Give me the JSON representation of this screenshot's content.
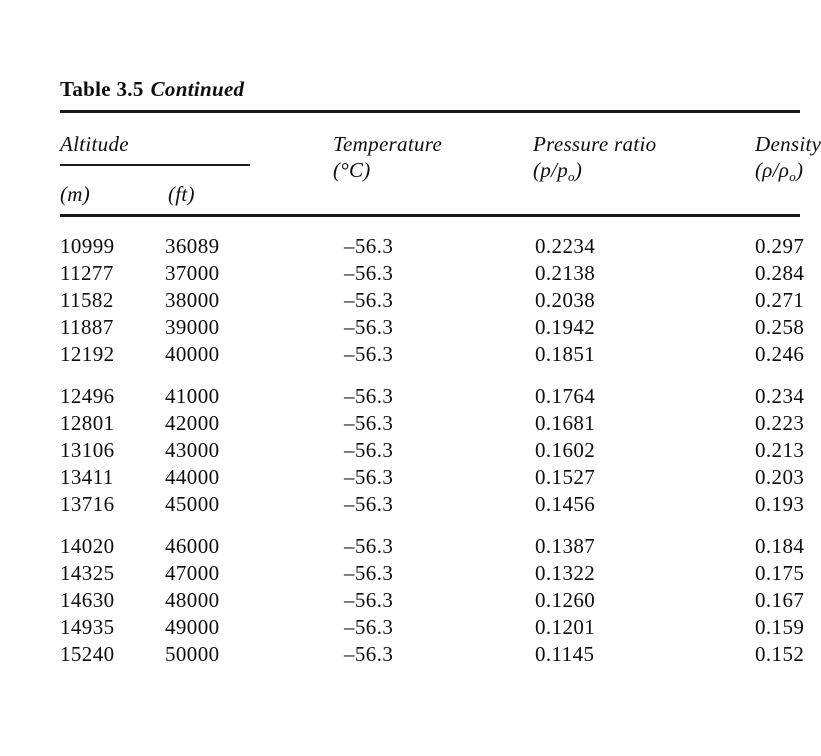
{
  "page": {
    "title_prefix": "Table 3.5",
    "title_emph": "Continued"
  },
  "header": {
    "altitude_group": "Altitude",
    "unit_m": "(m)",
    "unit_ft": "(ft)",
    "temperature_line1": "Temperature",
    "temperature_line2": "(°C)",
    "pressure_line1": "Pressure ratio",
    "pressure_sub_pre": "(p/p",
    "pressure_sub": "o",
    "pressure_sub_post": ")",
    "density_line1": "Density",
    "density_sub_pre": "(ρ/ρ",
    "density_sub": "o",
    "density_sub_post": ")"
  },
  "table": {
    "columns": [
      "Altitude (m)",
      "Altitude (ft)",
      "Temperature (°C)",
      "Pressure ratio (p/po)",
      "Density (ρ/ρo)"
    ],
    "row_groups": [
      {
        "rows": [
          [
            "10999",
            "36089",
            "–56.3",
            "0.2234",
            "0.297"
          ],
          [
            "11277",
            "37000",
            "–56.3",
            "0.2138",
            "0.284"
          ],
          [
            "11582",
            "38000",
            "–56.3",
            "0.2038",
            "0.271"
          ],
          [
            "11887",
            "39000",
            "–56.3",
            "0.1942",
            "0.258"
          ],
          [
            "12192",
            "40000",
            "–56.3",
            "0.1851",
            "0.246"
          ]
        ]
      },
      {
        "rows": [
          [
            "12496",
            "41000",
            "–56.3",
            "0.1764",
            "0.234"
          ],
          [
            "12801",
            "42000",
            "–56.3",
            "0.1681",
            "0.223"
          ],
          [
            "13106",
            "43000",
            "–56.3",
            "0.1602",
            "0.213"
          ],
          [
            "13411",
            "44000",
            "–56.3",
            "0.1527",
            "0.203"
          ],
          [
            "13716",
            "45000",
            "–56.3",
            "0.1456",
            "0.193"
          ]
        ]
      },
      {
        "rows": [
          [
            "14020",
            "46000",
            "–56.3",
            "0.1387",
            "0.184"
          ],
          [
            "14325",
            "47000",
            "–56.3",
            "0.1322",
            "0.175"
          ],
          [
            "14630",
            "48000",
            "–56.3",
            "0.1260",
            "0.167"
          ],
          [
            "14935",
            "49000",
            "–56.3",
            "0.1201",
            "0.159"
          ],
          [
            "15240",
            "50000",
            "–56.3",
            "0.1145",
            "0.152"
          ]
        ]
      }
    ]
  },
  "colors": {
    "background": "#ffffff",
    "text": "#0d0d0d",
    "rule": "#1a1a1a"
  }
}
